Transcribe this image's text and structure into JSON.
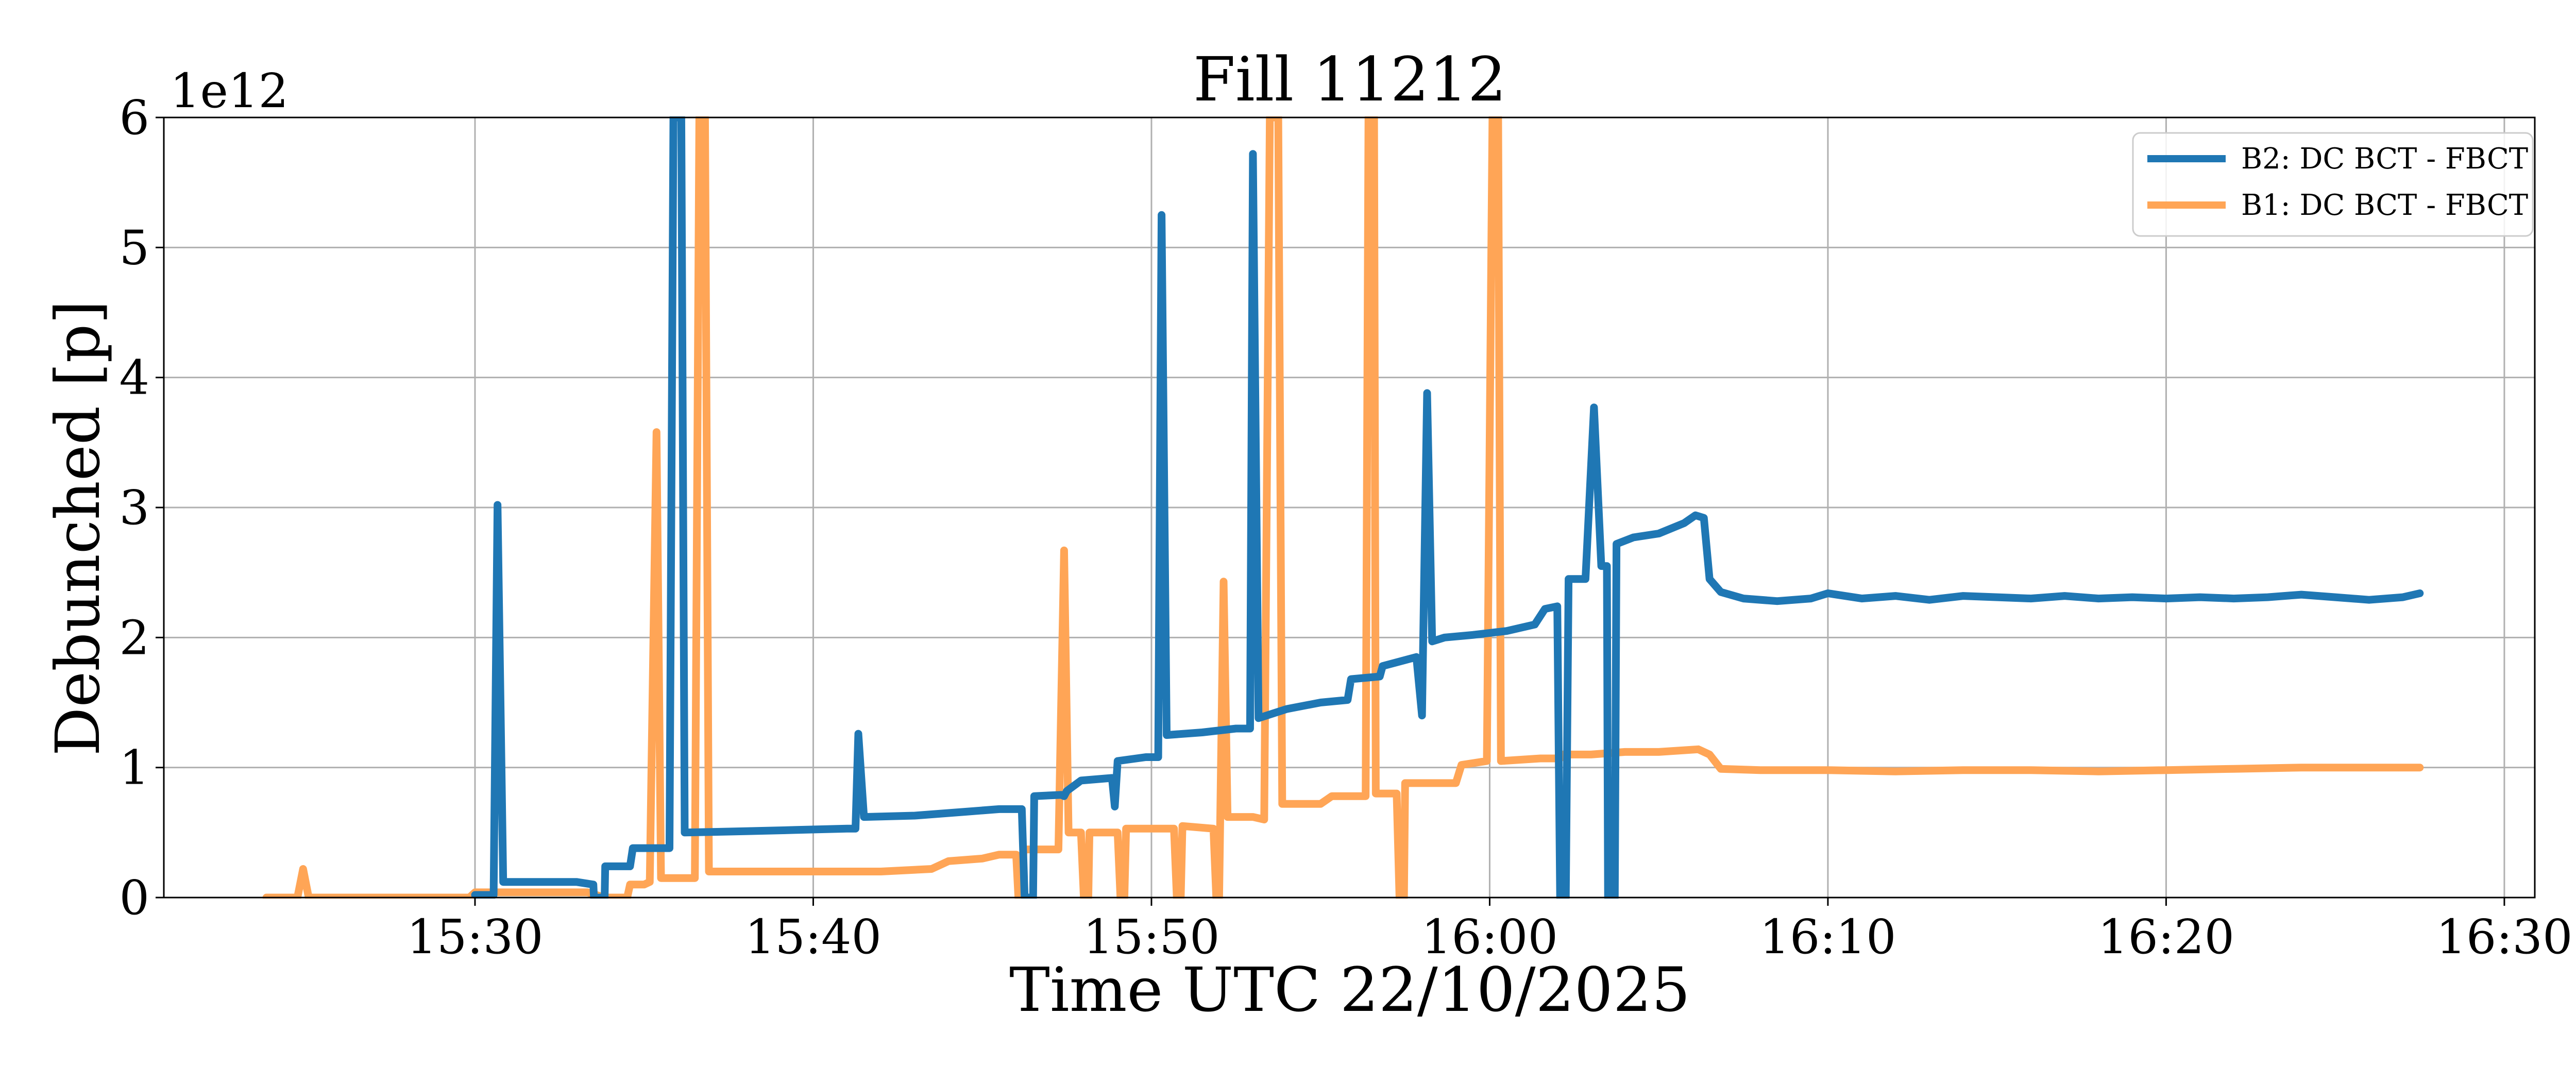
{
  "chart_data": {
    "type": "line",
    "title": "Fill 11212",
    "xlabel": "Time UTC 22/10/2025",
    "ylabel": "Debunched [p]",
    "y_offset_label": "1e12",
    "xlim": [
      "15:20:48",
      "16:30:54"
    ],
    "ylim": [
      0,
      6
    ],
    "x_ticks": [
      "15:30",
      "15:40",
      "15:50",
      "16:00",
      "16:10",
      "16:20",
      "16:30"
    ],
    "y_ticks": [
      "0",
      "1",
      "2",
      "3",
      "4",
      "5",
      "6"
    ],
    "grid": true,
    "legend_position": "top-right",
    "series": [
      {
        "name": "B2: DC BCT - FBCT",
        "color": "#1f77b4",
        "points": [
          [
            "15:30:00",
            0.02
          ],
          [
            "15:30:33",
            0.02
          ],
          [
            "15:30:40",
            3.02
          ],
          [
            "15:30:50",
            0.12
          ],
          [
            "15:33:00",
            0.12
          ],
          [
            "15:33:30",
            0.1
          ],
          [
            "15:33:31",
            0.0
          ],
          [
            "15:33:50",
            0.0
          ],
          [
            "15:33:51",
            0.24
          ],
          [
            "15:34:35",
            0.24
          ],
          [
            "15:34:40",
            0.38
          ],
          [
            "15:35:45",
            0.38
          ],
          [
            "15:35:52",
            6.0
          ],
          [
            "15:36:06",
            6.0
          ],
          [
            "15:36:12",
            0.5
          ],
          [
            "15:38:00",
            0.51
          ],
          [
            "15:39:30",
            0.52
          ],
          [
            "15:41:00",
            0.53
          ],
          [
            "15:41:15",
            0.53
          ],
          [
            "15:41:20",
            1.26
          ],
          [
            "15:41:30",
            0.62
          ],
          [
            "15:43:00",
            0.63
          ],
          [
            "15:44:30",
            0.66
          ],
          [
            "15:45:30",
            0.68
          ],
          [
            "15:46:10",
            0.68
          ],
          [
            "15:46:15",
            0.0
          ],
          [
            "15:46:30",
            0.0
          ],
          [
            "15:46:32",
            0.78
          ],
          [
            "15:47:20",
            0.79
          ],
          [
            "15:47:25",
            0.78
          ],
          [
            "15:47:30",
            0.82
          ],
          [
            "15:47:55",
            0.9
          ],
          [
            "15:48:50",
            0.92
          ],
          [
            "15:48:55",
            0.7
          ],
          [
            "15:49:00",
            1.05
          ],
          [
            "15:49:50",
            1.08
          ],
          [
            "15:50:12",
            1.08
          ],
          [
            "15:50:18",
            5.25
          ],
          [
            "15:50:27",
            1.25
          ],
          [
            "15:51:30",
            1.27
          ],
          [
            "15:52:30",
            1.3
          ],
          [
            "15:52:55",
            1.3
          ],
          [
            "15:53:00",
            5.72
          ],
          [
            "15:53:10",
            1.38
          ],
          [
            "15:54:00",
            1.45
          ],
          [
            "15:55:00",
            1.5
          ],
          [
            "15:55:48",
            1.52
          ],
          [
            "15:55:54",
            1.68
          ],
          [
            "15:56:45",
            1.7
          ],
          [
            "15:56:50",
            1.78
          ],
          [
            "15:57:50",
            1.85
          ],
          [
            "15:58:00",
            1.4
          ],
          [
            "15:58:09",
            3.88
          ],
          [
            "15:58:18",
            1.97
          ],
          [
            "15:58:40",
            2.0
          ],
          [
            "15:59:30",
            2.02
          ],
          [
            "16:00:30",
            2.05
          ],
          [
            "16:01:20",
            2.1
          ],
          [
            "16:01:38",
            2.22
          ],
          [
            "16:02:00",
            2.24
          ],
          [
            "16:02:05",
            0.0
          ],
          [
            "16:02:15",
            0.0
          ],
          [
            "16:02:20",
            2.45
          ],
          [
            "16:02:50",
            2.45
          ],
          [
            "16:03:05",
            3.77
          ],
          [
            "16:03:18",
            2.55
          ],
          [
            "16:03:28",
            2.55
          ],
          [
            "16:03:30",
            0.0
          ],
          [
            "16:03:42",
            0.0
          ],
          [
            "16:03:45",
            2.72
          ],
          [
            "16:04:15",
            2.77
          ],
          [
            "16:05:00",
            2.8
          ],
          [
            "16:05:45",
            2.88
          ],
          [
            "16:06:05",
            2.94
          ],
          [
            "16:06:20",
            2.92
          ],
          [
            "16:06:30",
            2.45
          ],
          [
            "16:06:50",
            2.35
          ],
          [
            "16:07:30",
            2.3
          ],
          [
            "16:08:30",
            2.28
          ],
          [
            "16:09:30",
            2.3
          ],
          [
            "16:10:00",
            2.34
          ],
          [
            "16:11:00",
            2.3
          ],
          [
            "16:12:00",
            2.32
          ],
          [
            "16:13:00",
            2.29
          ],
          [
            "16:14:00",
            2.32
          ],
          [
            "16:15:00",
            2.31
          ],
          [
            "16:16:00",
            2.3
          ],
          [
            "16:17:00",
            2.32
          ],
          [
            "16:18:00",
            2.3
          ],
          [
            "16:19:00",
            2.31
          ],
          [
            "16:20:00",
            2.3
          ],
          [
            "16:21:00",
            2.31
          ],
          [
            "16:22:00",
            2.3
          ],
          [
            "16:23:00",
            2.31
          ],
          [
            "16:24:00",
            2.33
          ],
          [
            "16:25:00",
            2.31
          ],
          [
            "16:26:00",
            2.29
          ],
          [
            "16:27:00",
            2.31
          ],
          [
            "16:27:30",
            2.34
          ]
        ]
      },
      {
        "name": "B1: DC BCT - FBCT",
        "color": "#ffa556",
        "points": [
          [
            "15:23:50",
            0.0
          ],
          [
            "15:24:45",
            0.0
          ],
          [
            "15:24:55",
            0.22
          ],
          [
            "15:25:05",
            0.0
          ],
          [
            "15:27:00",
            0.0
          ],
          [
            "15:29:50",
            0.0
          ],
          [
            "15:30:00",
            0.04
          ],
          [
            "15:32:00",
            0.04
          ],
          [
            "15:33:20",
            0.04
          ],
          [
            "15:33:50",
            0.0
          ],
          [
            "15:34:30",
            0.0
          ],
          [
            "15:34:35",
            0.1
          ],
          [
            "15:35:00",
            0.1
          ],
          [
            "15:35:10",
            0.12
          ],
          [
            "15:35:22",
            3.58
          ],
          [
            "15:35:30",
            0.15
          ],
          [
            "15:36:30",
            0.15
          ],
          [
            "15:36:38",
            6.0
          ],
          [
            "15:36:48",
            6.0
          ],
          [
            "15:36:55",
            0.2
          ],
          [
            "15:38:00",
            0.2
          ],
          [
            "15:40:00",
            0.2
          ],
          [
            "15:42:00",
            0.2
          ],
          [
            "15:43:30",
            0.22
          ],
          [
            "15:44:00",
            0.28
          ],
          [
            "15:45:00",
            0.3
          ],
          [
            "15:45:30",
            0.33
          ],
          [
            "15:46:00",
            0.33
          ],
          [
            "15:46:04",
            0.0
          ],
          [
            "15:46:10",
            0.0
          ],
          [
            "15:46:13",
            0.37
          ],
          [
            "15:47:15",
            0.37
          ],
          [
            "15:47:25",
            2.67
          ],
          [
            "15:47:33",
            0.5
          ],
          [
            "15:47:55",
            0.5
          ],
          [
            "15:48:00",
            0.0
          ],
          [
            "15:48:08",
            0.0
          ],
          [
            "15:48:10",
            0.5
          ],
          [
            "15:49:00",
            0.5
          ],
          [
            "15:49:05",
            0.0
          ],
          [
            "15:49:12",
            0.0
          ],
          [
            "15:49:15",
            0.53
          ],
          [
            "15:50:40",
            0.53
          ],
          [
            "15:50:45",
            0.0
          ],
          [
            "15:50:52",
            0.0
          ],
          [
            "15:50:55",
            0.55
          ],
          [
            "15:51:50",
            0.53
          ],
          [
            "15:51:55",
            0.0
          ],
          [
            "15:52:00",
            0.0
          ],
          [
            "15:52:08",
            2.43
          ],
          [
            "15:52:15",
            0.62
          ],
          [
            "15:53:00",
            0.62
          ],
          [
            "15:53:20",
            0.6
          ],
          [
            "15:53:30",
            6.0
          ],
          [
            "15:53:45",
            6.0
          ],
          [
            "15:53:52",
            0.72
          ],
          [
            "15:55:00",
            0.72
          ],
          [
            "15:55:20",
            0.78
          ],
          [
            "15:56:00",
            0.78
          ],
          [
            "15:56:20",
            0.78
          ],
          [
            "15:56:25",
            6.0
          ],
          [
            "15:56:35",
            6.0
          ],
          [
            "15:56:38",
            0.8
          ],
          [
            "15:57:15",
            0.8
          ],
          [
            "15:57:20",
            0.0
          ],
          [
            "15:57:28",
            0.0
          ],
          [
            "15:57:30",
            0.88
          ],
          [
            "15:59:00",
            0.88
          ],
          [
            "15:59:10",
            1.02
          ],
          [
            "15:59:55",
            1.05
          ],
          [
            "16:00:05",
            6.0
          ],
          [
            "16:00:15",
            6.0
          ],
          [
            "16:00:20",
            1.05
          ],
          [
            "16:01:30",
            1.07
          ],
          [
            "16:02:05",
            1.07
          ],
          [
            "16:02:10",
            1.1
          ],
          [
            "16:03:00",
            1.1
          ],
          [
            "16:04:00",
            1.12
          ],
          [
            "16:05:00",
            1.12
          ],
          [
            "16:06:10",
            1.14
          ],
          [
            "16:06:30",
            1.1
          ],
          [
            "16:06:50",
            0.99
          ],
          [
            "16:08:00",
            0.98
          ],
          [
            "16:10:00",
            0.98
          ],
          [
            "16:12:00",
            0.97
          ],
          [
            "16:14:00",
            0.98
          ],
          [
            "16:16:00",
            0.98
          ],
          [
            "16:18:00",
            0.97
          ],
          [
            "16:20:00",
            0.98
          ],
          [
            "16:22:00",
            0.99
          ],
          [
            "16:24:00",
            1.0
          ],
          [
            "16:26:00",
            1.0
          ],
          [
            "16:27:30",
            1.0
          ]
        ]
      }
    ]
  }
}
